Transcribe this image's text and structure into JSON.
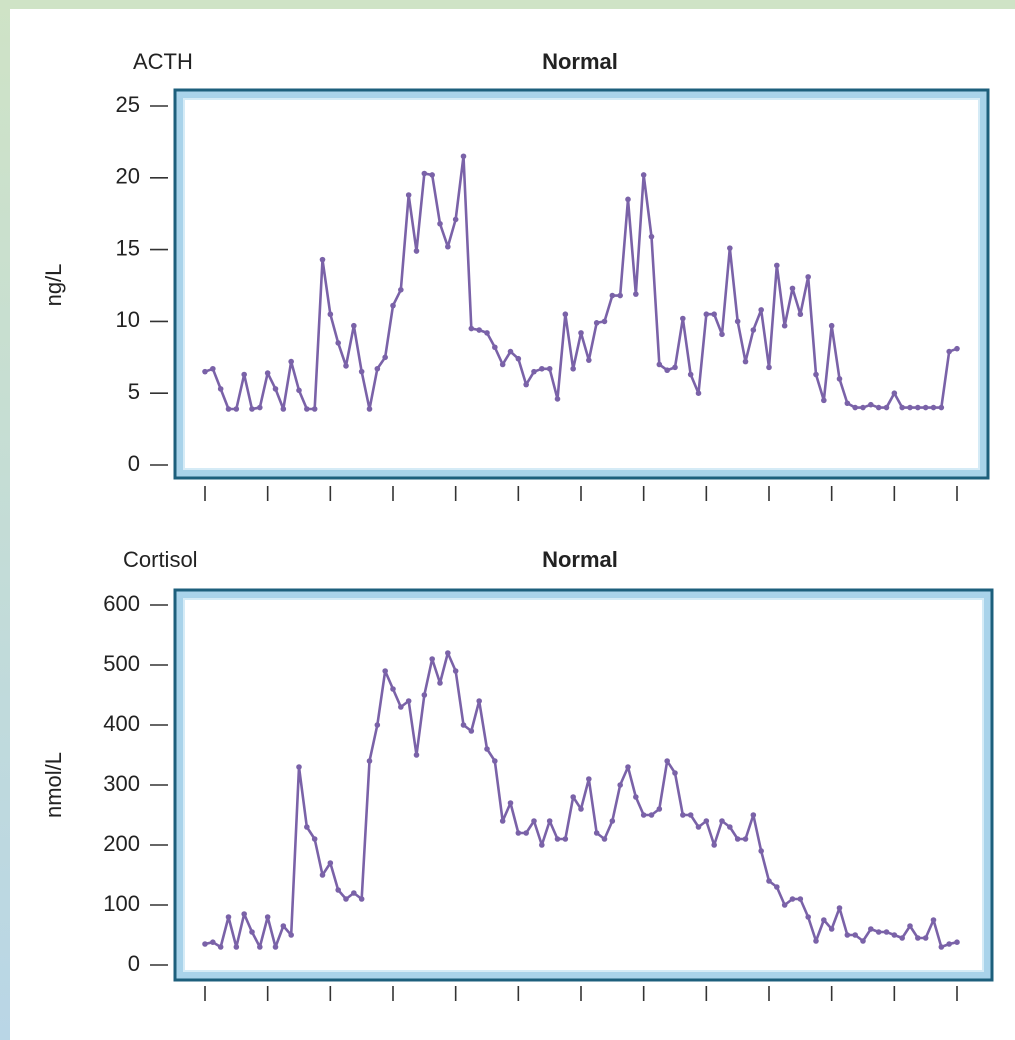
{
  "chart_data": [
    {
      "type": "line",
      "label": "ACTH",
      "title": "Normal",
      "ylabel": "ng/L",
      "x": [
        0,
        0.25,
        0.5,
        0.75,
        1,
        1.25,
        1.5,
        1.75,
        2,
        2.25,
        2.5,
        2.75,
        3,
        3.25,
        3.5,
        3.75,
        4,
        4.25,
        4.5,
        4.75,
        5,
        5.25,
        5.5,
        5.75,
        6,
        6.25,
        6.5,
        6.75,
        7,
        7.25,
        7.5,
        7.75,
        8,
        8.25,
        8.5,
        8.75,
        9,
        9.25,
        9.5,
        9.75,
        10,
        10.25,
        10.5,
        10.75,
        11,
        11.25,
        11.5,
        11.75,
        12,
        12.25,
        12.5,
        12.75,
        13,
        13.25,
        13.5,
        13.75,
        14,
        14.25,
        14.5,
        14.75,
        15,
        15.25,
        15.5,
        15.75,
        16,
        16.25,
        16.5,
        16.75,
        17,
        17.25,
        17.5,
        17.75,
        18,
        18.25,
        18.5,
        18.75,
        19,
        19.25,
        19.5,
        19.75,
        20,
        20.25,
        20.5,
        20.75,
        21,
        21.25,
        21.5,
        21.75,
        22,
        22.25,
        22.5,
        22.75,
        23,
        23.25,
        23.5,
        23.75,
        24
      ],
      "series": [
        {
          "color": "#7a62a8",
          "values": [
            6.5,
            6.7,
            5.3,
            3.9,
            3.9,
            6.3,
            3.9,
            4,
            6.4,
            5.3,
            3.9,
            7.2,
            5.2,
            3.9,
            3.9,
            14.3,
            10.5,
            8.5,
            6.9,
            9.7,
            6.5,
            3.9,
            6.7,
            7.5,
            11.1,
            12.2,
            18.8,
            14.9,
            20.3,
            20.2,
            16.8,
            15.2,
            17.1,
            21.5,
            9.5,
            9.4,
            9.2,
            8.2,
            7,
            7.9,
            7.4,
            5.6,
            6.5,
            6.7,
            6.7,
            4.6,
            10.5,
            6.7,
            9.2,
            7.3,
            9.9,
            10,
            11.8,
            11.8,
            18.5,
            11.9,
            20.2,
            15.9,
            7,
            6.6,
            6.8,
            10.2,
            6.3,
            5,
            10.5,
            10.5,
            9.1,
            15.1,
            10,
            7.2,
            9.4,
            10.8,
            6.8,
            13.9,
            9.7,
            12.3,
            10.5,
            13.1,
            6.3,
            4.5,
            9.7,
            6,
            4.3,
            4,
            4,
            4.2,
            4,
            4,
            5,
            4,
            4,
            4,
            4,
            4,
            4,
            7.9,
            8.1
          ]
        }
      ],
      "xlim": [
        0,
        24
      ],
      "xticks": [
        0,
        2,
        4,
        6,
        8,
        10,
        12,
        14,
        16,
        18,
        20,
        22,
        24
      ],
      "ylim": [
        0,
        25
      ],
      "yticks": [
        0,
        5,
        10,
        15,
        20,
        25
      ]
    },
    {
      "type": "line",
      "label": "Cortisol",
      "title": "Normal",
      "ylabel": "nmol/L",
      "x": [
        0,
        0.25,
        0.5,
        0.75,
        1,
        1.25,
        1.5,
        1.75,
        2,
        2.25,
        2.5,
        2.75,
        3,
        3.25,
        3.5,
        3.75,
        4,
        4.25,
        4.5,
        4.75,
        5,
        5.25,
        5.5,
        5.75,
        6,
        6.25,
        6.5,
        6.75,
        7,
        7.25,
        7.5,
        7.75,
        8,
        8.25,
        8.5,
        8.75,
        9,
        9.25,
        9.5,
        9.75,
        10,
        10.25,
        10.5,
        10.75,
        11,
        11.25,
        11.5,
        11.75,
        12,
        12.25,
        12.5,
        12.75,
        13,
        13.25,
        13.5,
        13.75,
        14,
        14.25,
        14.5,
        14.75,
        15,
        15.25,
        15.5,
        15.75,
        16,
        16.25,
        16.5,
        16.75,
        17,
        17.25,
        17.5,
        17.75,
        18,
        18.25,
        18.5,
        18.75,
        19,
        19.25,
        19.5,
        19.75,
        20,
        20.25,
        20.5,
        20.75,
        21,
        21.25,
        21.5,
        21.75,
        22,
        22.25,
        22.5,
        22.75,
        23,
        23.25,
        23.5,
        23.75,
        24
      ],
      "series": [
        {
          "color": "#7a62a8",
          "values": [
            35,
            38,
            30,
            80,
            30,
            85,
            55,
            30,
            80,
            30,
            65,
            50,
            330,
            230,
            210,
            150,
            170,
            125,
            110,
            120,
            110,
            340,
            400,
            490,
            460,
            430,
            440,
            350,
            450,
            510,
            470,
            520,
            490,
            400,
            390,
            440,
            360,
            340,
            240,
            270,
            220,
            220,
            240,
            200,
            240,
            210,
            210,
            280,
            260,
            310,
            220,
            210,
            240,
            300,
            330,
            280,
            250,
            250,
            260,
            340,
            320,
            250,
            250,
            230,
            240,
            200,
            240,
            230,
            210,
            210,
            250,
            190,
            140,
            130,
            100,
            110,
            110,
            80,
            40,
            75,
            60,
            95,
            50,
            50,
            40,
            60,
            55,
            55,
            50,
            45,
            65,
            45,
            45,
            75,
            30,
            35,
            38
          ]
        }
      ],
      "xlim": [
        0,
        24
      ],
      "xticks": [
        0,
        2,
        4,
        6,
        8,
        10,
        12,
        14,
        16,
        18,
        20,
        22,
        24
      ],
      "ylim": [
        0,
        600
      ],
      "yticks": [
        0,
        100,
        200,
        300,
        400,
        500,
        600
      ]
    }
  ]
}
